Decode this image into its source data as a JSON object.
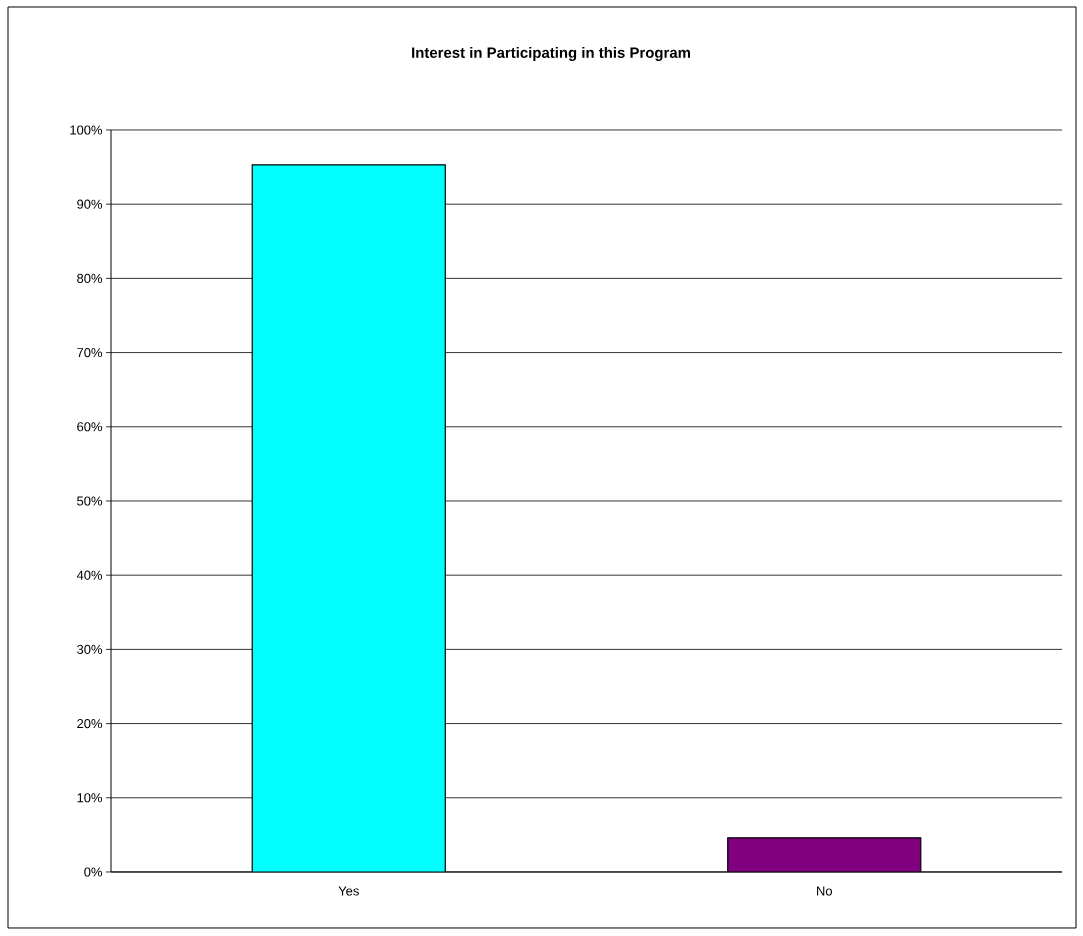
{
  "chart_data": {
    "type": "bar",
    "title": "Interest in Participating in this Program",
    "categories": [
      "Yes",
      "No"
    ],
    "values": [
      95.3,
      4.6
    ],
    "colors": [
      "#00ffff",
      "#800080"
    ],
    "ylim": [
      0,
      100
    ],
    "yticks": [
      {
        "value": 0,
        "label": "0%"
      },
      {
        "value": 10,
        "label": "10%"
      },
      {
        "value": 20,
        "label": "20%"
      },
      {
        "value": 30,
        "label": "30%"
      },
      {
        "value": 40,
        "label": "40%"
      },
      {
        "value": 50,
        "label": "50%"
      },
      {
        "value": 60,
        "label": "60%"
      },
      {
        "value": 70,
        "label": "70%"
      },
      {
        "value": 80,
        "label": "80%"
      },
      {
        "value": 90,
        "label": "90%"
      },
      {
        "value": 100,
        "label": "100%"
      }
    ],
    "grid": "y"
  }
}
